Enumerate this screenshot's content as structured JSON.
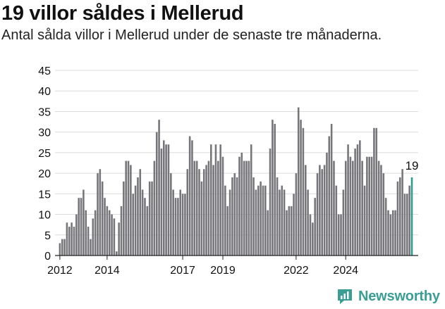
{
  "header": {
    "title": "19 villor såldes i Mellerud",
    "subtitle": "Antal sålda villor i Mellerud under de senaste tre månaderna."
  },
  "brand": {
    "name": "Newsworthy",
    "icon": "newsworthy-logo-icon",
    "color": "#3a9e95"
  },
  "chart_data": {
    "type": "bar",
    "title": "19 villor såldes i Mellerud",
    "subtitle": "Antal sålda villor i Mellerud under de senaste tre månaderna.",
    "xlabel": "",
    "ylabel": "",
    "ylim": [
      0,
      45
    ],
    "yticks": [
      0,
      5,
      10,
      15,
      20,
      25,
      30,
      35,
      40,
      45
    ],
    "xticks": [
      {
        "label": "2012",
        "index": 0
      },
      {
        "label": "2014",
        "index": 20
      },
      {
        "label": "2017",
        "index": 52
      },
      {
        "label": "2019",
        "index": 69
      },
      {
        "label": "2022",
        "index": 100
      },
      {
        "label": "2024",
        "index": 121
      }
    ],
    "grid": true,
    "legend": "none",
    "bar_color": "#75757a",
    "highlight_color": "#2a9d8f",
    "highlight_label": "19",
    "values": [
      3,
      4,
      4,
      8,
      7,
      8,
      7,
      10,
      14,
      14,
      16,
      11,
      7,
      4,
      9,
      11,
      20,
      21,
      18,
      14,
      12,
      11,
      10,
      9,
      1,
      8,
      12,
      18,
      23,
      23,
      22,
      15,
      17,
      19,
      21,
      16,
      14,
      12,
      18,
      18,
      23,
      30,
      33,
      26,
      28,
      27,
      27,
      20,
      16,
      14,
      14,
      16,
      15,
      15,
      21,
      29,
      28,
      23,
      23,
      21,
      18,
      21,
      22,
      23,
      27,
      22,
      27,
      23,
      27,
      24,
      17,
      12,
      16,
      19,
      20,
      19,
      24,
      25,
      23,
      23,
      23,
      27,
      19,
      16,
      17,
      18,
      17,
      17,
      11,
      26,
      33,
      32,
      19,
      16,
      17,
      16,
      11,
      12,
      12,
      15,
      20,
      36,
      33,
      31,
      22,
      16,
      10,
      8,
      14,
      20,
      22,
      21,
      22,
      25,
      29,
      32,
      23,
      17,
      10,
      10,
      16,
      23,
      27,
      24,
      23,
      26,
      27,
      28,
      23,
      17,
      24,
      24,
      24,
      31,
      31,
      23,
      22,
      20,
      14,
      11,
      10,
      11,
      11,
      18,
      19,
      21,
      15,
      15,
      17,
      19
    ]
  }
}
